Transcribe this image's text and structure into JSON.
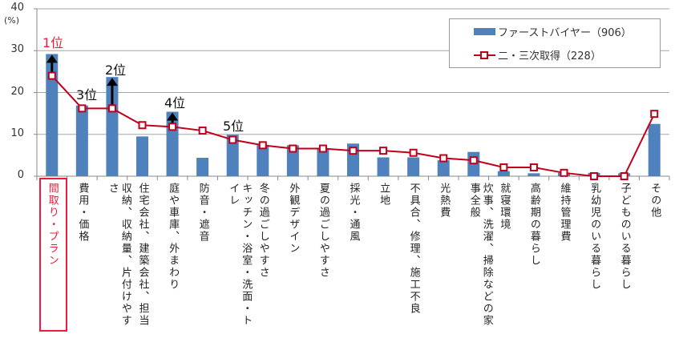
{
  "chart_data": {
    "type": "bar",
    "title": "",
    "ylabel": "(%)",
    "ylim": [
      0,
      40
    ],
    "yticks": [
      "0",
      "10",
      "20",
      "30",
      "40"
    ],
    "grid": true,
    "legend_position": "top-right",
    "categories": [
      "間取り・プラン",
      "費用・価格",
      "収納、収納量、片付けやすさ",
      "住宅会社、建築会社、担当",
      "庭や車庫、外まわり",
      "防音・遮音",
      "キッチン・浴室・洗面・トイレ",
      "冬の過ごしやすさ",
      "外観デザイン",
      "夏の過ごしやすさ",
      "採光・通風",
      "立地",
      "不具合、修理、施工不良",
      "光熱費",
      "炊事、洗濯、掃除などの家事全般",
      "就寝環境",
      "高齢期の暮らし",
      "維持管理費",
      "乳幼児のいる暮らし",
      "子どものいる暮らし",
      "その他"
    ],
    "series": [
      {
        "name": "ファーストバイヤー（906）",
        "type": "bar",
        "color": "#4f81bd",
        "values": [
          29.2,
          16.9,
          23.7,
          9.5,
          15.4,
          4.4,
          9.9,
          7.4,
          7.4,
          6.7,
          7.8,
          4.5,
          4.5,
          3.8,
          5.8,
          1.2,
          0.7,
          0.8,
          0.8,
          0.7,
          12.5
        ]
      },
      {
        "name": "二・三次取得（228）",
        "type": "line",
        "color": "#c0001a",
        "values": [
          24.0,
          16.2,
          16.2,
          12.2,
          11.8,
          10.9,
          8.7,
          7.4,
          6.6,
          6.6,
          6.1,
          6.1,
          5.6,
          4.3,
          3.8,
          2.1,
          2.1,
          0.8,
          0.0,
          0.0,
          14.9
        ]
      }
    ],
    "annotations": [
      {
        "text": "1位",
        "category_index": 0,
        "color": "#ee1c3a"
      },
      {
        "text": "2位",
        "category_index": 2,
        "color": "#111111"
      },
      {
        "text": "3位",
        "category_index": 1,
        "color": "#111111"
      },
      {
        "text": "4位",
        "category_index": 4,
        "color": "#111111"
      },
      {
        "text": "5位",
        "category_index": 6,
        "color": "#111111"
      }
    ],
    "highlight_category_index": 0
  }
}
